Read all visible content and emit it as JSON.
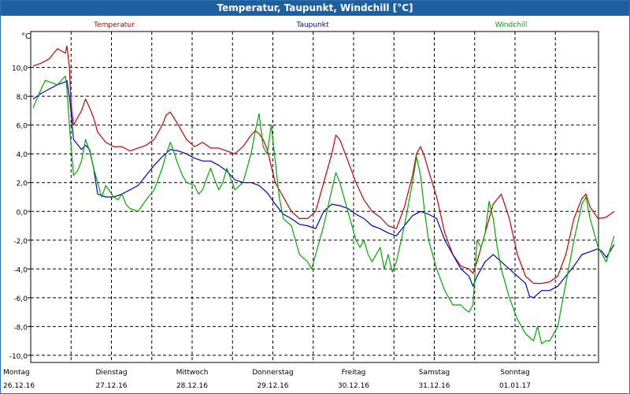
{
  "window": {
    "title": "Temperatur, Taupunkt, Windchill [°C]"
  },
  "chart_data": {
    "type": "line",
    "title": "Temperatur, Taupunkt, Windchill [°C]",
    "ylabel": "°C",
    "ylim": [
      -10.5,
      12.5
    ],
    "xlim": [
      0,
      7
    ],
    "yticks": [
      "10,0",
      "8,0",
      "6,0",
      "4,0",
      "2,0",
      "0,0",
      "-2,0",
      "-4,0",
      "-6,0",
      "-8,0",
      "-10,0"
    ],
    "ytick_values": [
      10,
      8,
      6,
      4,
      2,
      0,
      -2,
      -4,
      -6,
      -8,
      -10
    ],
    "xticks": [
      {
        "day": "Montag",
        "date": "26.12.16"
      },
      {
        "day": "Dienstag",
        "date": "27.12.16"
      },
      {
        "day": "Mittwoch",
        "date": "28.12.16"
      },
      {
        "day": "Donnerstag",
        "date": "29.12.16"
      },
      {
        "day": "Freitag",
        "date": "30.12.16"
      },
      {
        "day": "Samstag",
        "date": "31.12.16"
      },
      {
        "day": "Sonntag",
        "date": "01.01.17"
      }
    ],
    "grid": true,
    "legend_position": "top",
    "series": [
      {
        "name": "Temperatur",
        "color": "#cc0000",
        "points": [
          [
            0,
            10.1
          ],
          [
            0.1,
            10.3
          ],
          [
            0.2,
            10.6
          ],
          [
            0.3,
            11.3
          ],
          [
            0.4,
            11.0
          ],
          [
            0.42,
            11.5
          ],
          [
            0.45,
            10.0
          ],
          [
            0.47,
            7.5
          ],
          [
            0.5,
            6.0
          ],
          [
            0.6,
            7.0
          ],
          [
            0.65,
            7.8
          ],
          [
            0.7,
            7.2
          ],
          [
            0.75,
            6.5
          ],
          [
            0.8,
            5.5
          ],
          [
            0.9,
            4.8
          ],
          [
            1.0,
            4.5
          ],
          [
            1.1,
            4.5
          ],
          [
            1.2,
            4.2
          ],
          [
            1.3,
            4.4
          ],
          [
            1.4,
            4.6
          ],
          [
            1.5,
            5.0
          ],
          [
            1.6,
            6.0
          ],
          [
            1.65,
            6.7
          ],
          [
            1.7,
            6.9
          ],
          [
            1.8,
            6.0
          ],
          [
            1.9,
            5.0
          ],
          [
            2.0,
            4.5
          ],
          [
            2.1,
            4.8
          ],
          [
            2.2,
            4.4
          ],
          [
            2.3,
            4.4
          ],
          [
            2.4,
            4.2
          ],
          [
            2.5,
            4.0
          ],
          [
            2.6,
            4.5
          ],
          [
            2.7,
            5.3
          ],
          [
            2.75,
            5.6
          ],
          [
            2.8,
            5.4
          ],
          [
            2.85,
            5.0
          ],
          [
            2.9,
            4.3
          ],
          [
            3.0,
            2.0
          ],
          [
            3.1,
            1.0
          ],
          [
            3.2,
            0.0
          ],
          [
            3.3,
            -0.5
          ],
          [
            3.4,
            -0.5
          ],
          [
            3.5,
            0.0
          ],
          [
            3.6,
            2.0
          ],
          [
            3.7,
            4.0
          ],
          [
            3.75,
            5.3
          ],
          [
            3.8,
            5.0
          ],
          [
            3.9,
            3.5
          ],
          [
            4.0,
            2.0
          ],
          [
            4.1,
            0.8
          ],
          [
            4.2,
            0.0
          ],
          [
            4.3,
            -0.4
          ],
          [
            4.4,
            -1.0
          ],
          [
            4.5,
            -1.2
          ],
          [
            4.6,
            0.3
          ],
          [
            4.7,
            2.5
          ],
          [
            4.75,
            4.0
          ],
          [
            4.8,
            4.5
          ],
          [
            4.85,
            3.8
          ],
          [
            4.9,
            2.8
          ],
          [
            5.0,
            1.0
          ],
          [
            5.1,
            -1.5
          ],
          [
            5.2,
            -3.0
          ],
          [
            5.3,
            -3.8
          ],
          [
            5.4,
            -4.0
          ],
          [
            5.45,
            -4.3
          ],
          [
            5.5,
            -3.5
          ],
          [
            5.55,
            -2.5
          ],
          [
            5.6,
            -1.5
          ],
          [
            5.7,
            0.5
          ],
          [
            5.8,
            1.2
          ],
          [
            5.9,
            -0.5
          ],
          [
            6.0,
            -3.0
          ],
          [
            6.1,
            -4.5
          ],
          [
            6.2,
            -5.0
          ],
          [
            6.3,
            -5.0
          ],
          [
            6.4,
            -4.9
          ],
          [
            6.5,
            -4.5
          ],
          [
            6.6,
            -3.0
          ],
          [
            6.7,
            -0.5
          ],
          [
            6.8,
            0.9
          ],
          [
            6.85,
            1.2
          ],
          [
            6.9,
            0.3
          ],
          [
            7.0,
            -0.5
          ],
          [
            7.1,
            -0.4
          ],
          [
            7.2,
            0.0
          ]
        ]
      },
      {
        "name": "Taupunkt",
        "color": "#0000cc",
        "points": [
          [
            0,
            7.8
          ],
          [
            0.1,
            8.2
          ],
          [
            0.2,
            8.5
          ],
          [
            0.3,
            8.8
          ],
          [
            0.4,
            9.0
          ],
          [
            0.42,
            9.1
          ],
          [
            0.46,
            7.5
          ],
          [
            0.5,
            5.0
          ],
          [
            0.6,
            4.3
          ],
          [
            0.65,
            4.6
          ],
          [
            0.7,
            4.3
          ],
          [
            0.75,
            3.0
          ],
          [
            0.8,
            1.2
          ],
          [
            0.9,
            1.0
          ],
          [
            1.0,
            1.0
          ],
          [
            1.1,
            1.2
          ],
          [
            1.2,
            1.5
          ],
          [
            1.3,
            1.8
          ],
          [
            1.4,
            2.5
          ],
          [
            1.5,
            3.2
          ],
          [
            1.6,
            3.8
          ],
          [
            1.7,
            4.3
          ],
          [
            1.8,
            4.2
          ],
          [
            1.9,
            4.0
          ],
          [
            2.0,
            3.7
          ],
          [
            2.1,
            3.5
          ],
          [
            2.2,
            3.5
          ],
          [
            2.3,
            3.2
          ],
          [
            2.4,
            2.8
          ],
          [
            2.5,
            2.2
          ],
          [
            2.6,
            2.0
          ],
          [
            2.7,
            2.0
          ],
          [
            2.8,
            1.8
          ],
          [
            2.9,
            1.3
          ],
          [
            3.0,
            0.5
          ],
          [
            3.1,
            -0.2
          ],
          [
            3.2,
            -0.5
          ],
          [
            3.3,
            -0.9
          ],
          [
            3.4,
            -1.0
          ],
          [
            3.5,
            -1.2
          ],
          [
            3.6,
            0.0
          ],
          [
            3.7,
            0.5
          ],
          [
            3.8,
            0.4
          ],
          [
            3.9,
            0.2
          ],
          [
            4.0,
            -0.2
          ],
          [
            4.1,
            -0.5
          ],
          [
            4.2,
            -1.0
          ],
          [
            4.3,
            -1.2
          ],
          [
            4.4,
            -1.5
          ],
          [
            4.5,
            -1.7
          ],
          [
            4.6,
            -1.0
          ],
          [
            4.7,
            -0.3
          ],
          [
            4.8,
            0.0
          ],
          [
            4.9,
            -0.2
          ],
          [
            5.0,
            -0.5
          ],
          [
            5.1,
            -2.0
          ],
          [
            5.2,
            -3.0
          ],
          [
            5.3,
            -4.0
          ],
          [
            5.4,
            -4.5
          ],
          [
            5.45,
            -5.2
          ],
          [
            5.5,
            -4.5
          ],
          [
            5.6,
            -3.5
          ],
          [
            5.7,
            -3.0
          ],
          [
            5.8,
            -3.5
          ],
          [
            5.9,
            -4.0
          ],
          [
            6.0,
            -4.5
          ],
          [
            6.1,
            -5.0
          ],
          [
            6.15,
            -5.9
          ],
          [
            6.2,
            -6.0
          ],
          [
            6.3,
            -5.5
          ],
          [
            6.4,
            -5.5
          ],
          [
            6.5,
            -5.2
          ],
          [
            6.6,
            -4.5
          ],
          [
            6.7,
            -3.8
          ],
          [
            6.8,
            -3.0
          ],
          [
            6.9,
            -2.8
          ],
          [
            7.0,
            -2.6
          ],
          [
            7.05,
            -2.8
          ],
          [
            7.1,
            -3.2
          ],
          [
            7.2,
            -2.3
          ]
        ]
      },
      {
        "name": "Windchill",
        "color": "#00aa00",
        "points": [
          [
            0,
            7.2
          ],
          [
            0.1,
            8.5
          ],
          [
            0.15,
            9.1
          ],
          [
            0.3,
            8.8
          ],
          [
            0.4,
            9.4
          ],
          [
            0.42,
            8.5
          ],
          [
            0.45,
            6.0
          ],
          [
            0.5,
            2.5
          ],
          [
            0.55,
            2.8
          ],
          [
            0.6,
            3.5
          ],
          [
            0.65,
            5.0
          ],
          [
            0.7,
            4.2
          ],
          [
            0.75,
            3.0
          ],
          [
            0.8,
            2.0
          ],
          [
            0.85,
            1.0
          ],
          [
            0.9,
            1.8
          ],
          [
            1.0,
            1.0
          ],
          [
            1.05,
            0.8
          ],
          [
            1.1,
            1.2
          ],
          [
            1.15,
            0.5
          ],
          [
            1.2,
            0.2
          ],
          [
            1.3,
            0.0
          ],
          [
            1.35,
            0.4
          ],
          [
            1.4,
            0.8
          ],
          [
            1.5,
            1.5
          ],
          [
            1.6,
            3.0
          ],
          [
            1.65,
            4.0
          ],
          [
            1.7,
            4.8
          ],
          [
            1.75,
            4.0
          ],
          [
            1.8,
            3.2
          ],
          [
            1.85,
            2.5
          ],
          [
            1.9,
            2.0
          ],
          [
            2.0,
            1.8
          ],
          [
            2.05,
            1.2
          ],
          [
            2.1,
            1.5
          ],
          [
            2.15,
            2.3
          ],
          [
            2.2,
            3.0
          ],
          [
            2.25,
            2.2
          ],
          [
            2.3,
            1.5
          ],
          [
            2.35,
            2.0
          ],
          [
            2.4,
            3.0
          ],
          [
            2.5,
            1.5
          ],
          [
            2.6,
            2.0
          ],
          [
            2.7,
            4.0
          ],
          [
            2.75,
            5.5
          ],
          [
            2.8,
            6.8
          ],
          [
            2.85,
            4.5
          ],
          [
            2.9,
            4.0
          ],
          [
            2.95,
            6.0
          ],
          [
            3.0,
            3.5
          ],
          [
            3.05,
            1.0
          ],
          [
            3.1,
            -0.5
          ],
          [
            3.2,
            -1.0
          ],
          [
            3.3,
            -3.0
          ],
          [
            3.4,
            -3.5
          ],
          [
            3.45,
            -4.0
          ],
          [
            3.5,
            -3.0
          ],
          [
            3.6,
            -1.0
          ],
          [
            3.7,
            1.5
          ],
          [
            3.75,
            2.7
          ],
          [
            3.8,
            2.0
          ],
          [
            3.9,
            0.0
          ],
          [
            4.0,
            -2.0
          ],
          [
            4.05,
            -2.5
          ],
          [
            4.1,
            -2.0
          ],
          [
            4.15,
            -3.0
          ],
          [
            4.2,
            -3.5
          ],
          [
            4.3,
            -2.5
          ],
          [
            4.35,
            -4.0
          ],
          [
            4.4,
            -3.0
          ],
          [
            4.45,
            -4.2
          ],
          [
            4.5,
            -3.5
          ],
          [
            4.6,
            -1.0
          ],
          [
            4.7,
            2.0
          ],
          [
            4.75,
            3.8
          ],
          [
            4.8,
            2.5
          ],
          [
            4.85,
            0.0
          ],
          [
            4.9,
            -2.0
          ],
          [
            5.0,
            -4.0
          ],
          [
            5.1,
            -5.5
          ],
          [
            5.2,
            -6.5
          ],
          [
            5.3,
            -6.5
          ],
          [
            5.35,
            -6.8
          ],
          [
            5.4,
            -7.0
          ],
          [
            5.45,
            -6.5
          ],
          [
            5.5,
            -2.0
          ],
          [
            5.55,
            -2.5
          ],
          [
            5.6,
            -1.5
          ],
          [
            5.65,
            0.7
          ],
          [
            5.7,
            -0.5
          ],
          [
            5.75,
            -2.5
          ],
          [
            5.8,
            -4.0
          ],
          [
            5.9,
            -6.0
          ],
          [
            6.0,
            -7.5
          ],
          [
            6.1,
            -8.5
          ],
          [
            6.2,
            -9.0
          ],
          [
            6.25,
            -8.0
          ],
          [
            6.3,
            -9.2
          ],
          [
            6.35,
            -9.0
          ],
          [
            6.4,
            -9.0
          ],
          [
            6.5,
            -8.0
          ],
          [
            6.6,
            -5.0
          ],
          [
            6.7,
            -2.0
          ],
          [
            6.8,
            0.5
          ],
          [
            6.85,
            1.0
          ],
          [
            6.9,
            -0.5
          ],
          [
            7.0,
            -2.5
          ],
          [
            7.1,
            -3.5
          ],
          [
            7.2,
            -1.7
          ]
        ]
      }
    ]
  }
}
